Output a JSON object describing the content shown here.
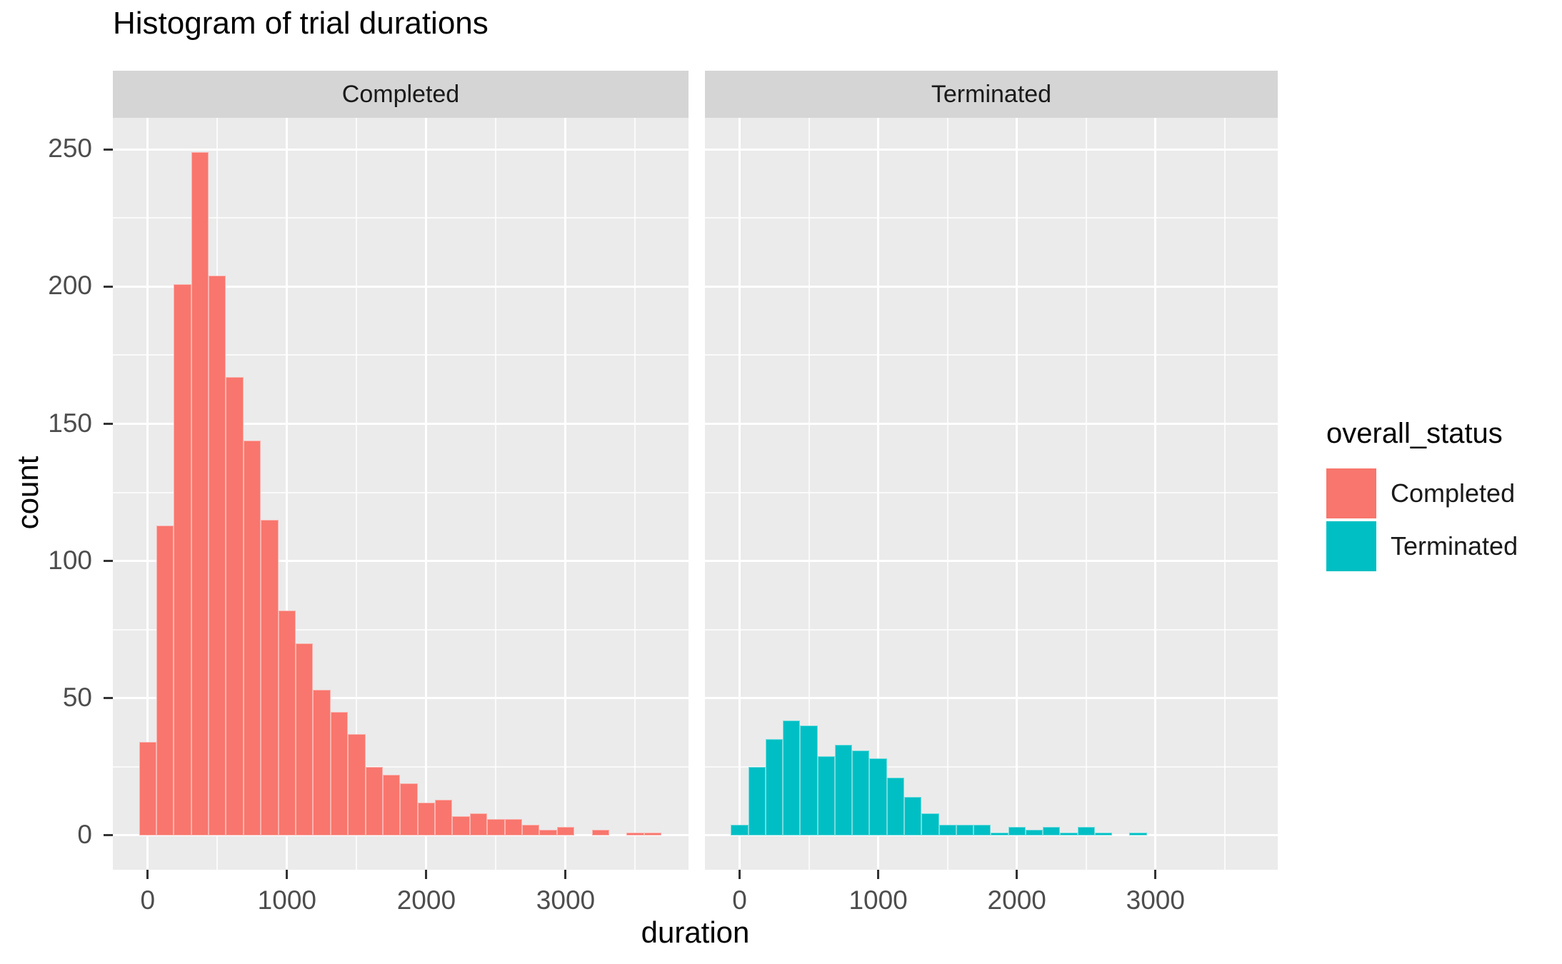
{
  "title": "Histogram of trial durations",
  "axes": {
    "x": {
      "title": "duration",
      "major_ticks": [
        0,
        1000,
        2000,
        3000
      ],
      "minor_ticks": [
        500,
        1500,
        2500,
        3500
      ],
      "range_expanded": [
        -250,
        3882
      ]
    },
    "y": {
      "title": "count",
      "major_ticks": [
        0,
        50,
        100,
        150,
        200,
        250
      ],
      "minor_ticks": [
        25,
        75,
        125,
        175,
        225
      ],
      "range_expanded": [
        -12.5,
        261.5
      ]
    }
  },
  "facets": [
    {
      "label": "Completed"
    },
    {
      "label": "Terminated"
    }
  ],
  "legend": {
    "title": "overall_status",
    "items": [
      {
        "label": "Completed",
        "color": "#F8766D"
      },
      {
        "label": "Terminated",
        "color": "#00BFC4"
      }
    ]
  },
  "colors": {
    "panel_bg": "#EBEBEB",
    "strip_bg": "#D5D5D5",
    "gridline": "#FFFFFF",
    "tick_text": "#4D4D4D",
    "tick_mark": "#333333",
    "completed_fill": "#F8766D",
    "terminated_fill": "#00BFC4"
  },
  "chart_data": {
    "type": "histogram",
    "title": "Histogram of trial durations",
    "xlabel": "duration",
    "ylabel": "count",
    "facet_variable": "overall_status",
    "binwidth": 125,
    "bin_centers": [
      0,
      125,
      250,
      375,
      500,
      625,
      750,
      875,
      1000,
      1125,
      1250,
      1375,
      1500,
      1625,
      1750,
      1875,
      2000,
      2125,
      2250,
      2375,
      2500,
      2625,
      2750,
      2875,
      3000,
      3125,
      3250,
      3375,
      3500,
      3625
    ],
    "series": [
      {
        "name": "Completed",
        "counts": [
          34,
          113,
          201,
          249,
          204,
          167,
          144,
          115,
          82,
          70,
          53,
          45,
          37,
          25,
          22,
          19,
          12,
          13,
          7,
          8,
          6,
          6,
          4,
          2,
          3,
          0,
          2,
          0,
          1,
          1
        ]
      },
      {
        "name": "Terminated",
        "counts": [
          4,
          25,
          35,
          42,
          40,
          29,
          33,
          31,
          28,
          21,
          14,
          8,
          4,
          4,
          4,
          1,
          3,
          2,
          3,
          1,
          3,
          1,
          0,
          1,
          0,
          0,
          0,
          0,
          0,
          0
        ]
      }
    ],
    "x_tick_labels": [
      "0",
      "1000",
      "2000",
      "3000"
    ],
    "y_tick_labels": [
      "0",
      "50",
      "100",
      "150",
      "200",
      "250"
    ],
    "xlim_expanded": [
      -250,
      3882
    ],
    "ylim_expanded": [
      -12.5,
      261.5
    ],
    "grid": true,
    "legend_position": "right"
  }
}
